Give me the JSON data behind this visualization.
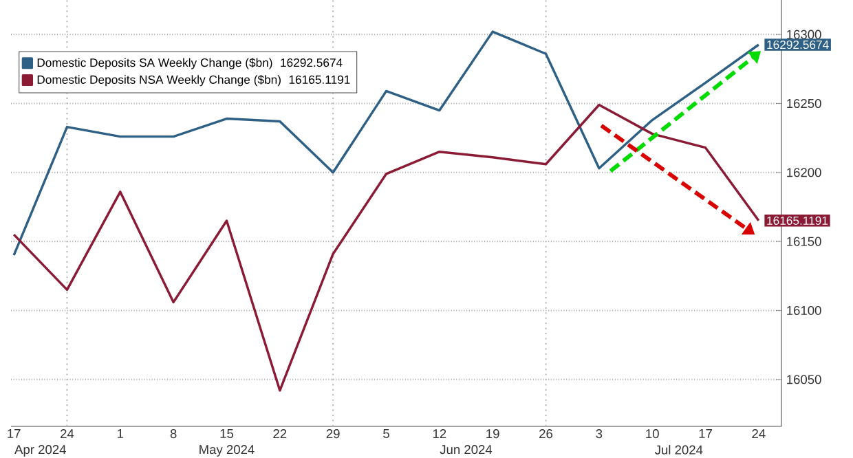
{
  "chart_data": {
    "type": "line",
    "x": [
      "2024-04-17",
      "2024-04-24",
      "2024-05-01",
      "2024-05-08",
      "2024-05-15",
      "2024-05-22",
      "2024-05-29",
      "2024-06-05",
      "2024-06-12",
      "2024-06-19",
      "2024-06-26",
      "2024-07-03",
      "2024-07-10",
      "2024-07-17",
      "2024-07-24"
    ],
    "series": [
      {
        "name": "Domestic Deposits SA Weekly Change ($bn)",
        "color": "#2e5f85",
        "values": [
          16140,
          16233,
          16226,
          16226,
          16239,
          16237,
          16200,
          16259,
          16245,
          16302,
          16286,
          16203,
          16238,
          16265,
          16292.5674
        ],
        "value_labels": [
          null,
          null,
          null,
          null,
          null,
          null,
          null,
          null,
          null,
          null,
          null,
          null,
          null,
          null,
          "16292.5674"
        ]
      },
      {
        "name": "Domestic Deposits NSA Weekly Change ($bn)",
        "color": "#8b1a35",
        "values": [
          16155,
          16115,
          16186,
          16106,
          16165,
          16042,
          16141,
          16199,
          16215,
          16211,
          16206,
          16249,
          16228,
          16218,
          16165.1191
        ],
        "value_labels": [
          null,
          null,
          null,
          null,
          null,
          null,
          null,
          null,
          null,
          null,
          null,
          null,
          null,
          null,
          "16165.1191"
        ]
      }
    ],
    "xlim": [
      "2024-04-16T15:00",
      "2024-07-27"
    ],
    "ylim": [
      16016,
      16325
    ],
    "xticks": [
      {
        "value": "2024-04-17",
        "label": "17"
      },
      {
        "value": "2024-04-24",
        "label": "24"
      },
      {
        "value": "2024-05-01",
        "label": "1"
      },
      {
        "value": "2024-05-08",
        "label": "8"
      },
      {
        "value": "2024-05-15",
        "label": "15"
      },
      {
        "value": "2024-05-22",
        "label": "22"
      },
      {
        "value": "2024-05-29",
        "label": "29"
      },
      {
        "value": "2024-06-05",
        "label": "5"
      },
      {
        "value": "2024-06-12",
        "label": "12"
      },
      {
        "value": "2024-06-19",
        "label": "19"
      },
      {
        "value": "2024-06-26",
        "label": "26"
      },
      {
        "value": "2024-07-03",
        "label": "3"
      },
      {
        "value": "2024-07-10",
        "label": "10"
      },
      {
        "value": "2024-07-17",
        "label": "17"
      },
      {
        "value": "2024-07-24",
        "label": "24"
      }
    ],
    "yticks": [
      16050,
      16100,
      16150,
      16200,
      16250,
      16300
    ],
    "annotations": [
      "Apr 2024",
      "May 2024",
      "Jun 2024",
      "Jul 2024"
    ],
    "ref_lines": [
      {
        "axis": "x",
        "value": "2024-04-24",
        "color": "#bbbbbb",
        "line_style": "dotted"
      },
      {
        "axis": "x",
        "value": "2024-05-29",
        "color": "#bbbbbb",
        "line_style": "dotted"
      },
      {
        "axis": "x",
        "value": "2024-06-26",
        "color": "#bbbbbb",
        "line_style": "dotted"
      }
    ],
    "grid": "y",
    "legend": "top left",
    "marker": "none",
    "line_style": "solid"
  }
}
